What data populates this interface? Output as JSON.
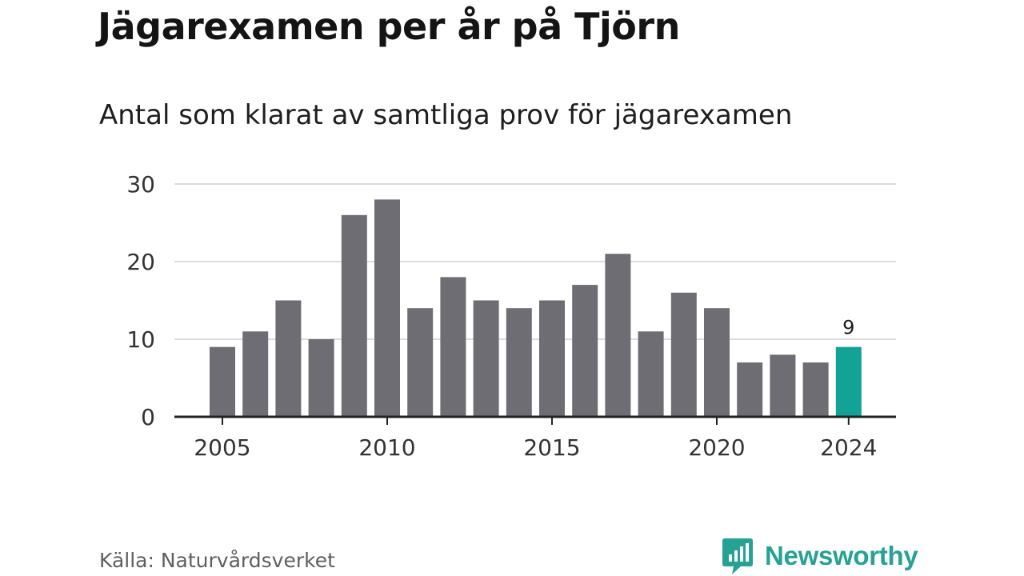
{
  "title": "Jägarexamen per år på Tjörn",
  "subtitle": "Antal som klarat av samtliga prov för jägarexamen",
  "source": "Källa: Naturvårdsverket",
  "brand": {
    "name": "Newsworthy",
    "icon": "newsworthy-logo-icon",
    "color": "#25a294"
  },
  "colors": {
    "bar": "#6e6d73",
    "highlight": "#12a396",
    "grid": "#dddddd",
    "axis": "#222222"
  },
  "chart_data": {
    "type": "bar",
    "categories": [
      "2005",
      "2006",
      "2007",
      "2008",
      "2009",
      "2010",
      "2011",
      "2012",
      "2013",
      "2014",
      "2015",
      "2016",
      "2017",
      "2018",
      "2019",
      "2020",
      "2021",
      "2022",
      "2023",
      "2024"
    ],
    "values": [
      9,
      11,
      15,
      10,
      26,
      28,
      14,
      18,
      15,
      14,
      15,
      17,
      21,
      11,
      16,
      14,
      7,
      8,
      7,
      9
    ],
    "highlight_index": 19,
    "data_labels": [
      {
        "index": 19,
        "text": "9"
      }
    ],
    "x_tick_labels": [
      "2005",
      "2010",
      "2015",
      "2020",
      "2024"
    ],
    "y_ticks": [
      0,
      10,
      20,
      30
    ],
    "ylim": [
      0,
      30
    ],
    "title": "Jägarexamen per år på Tjörn",
    "subtitle": "Antal som klarat av samtliga prov för jägarexamen",
    "grid": true,
    "legend": "none"
  }
}
